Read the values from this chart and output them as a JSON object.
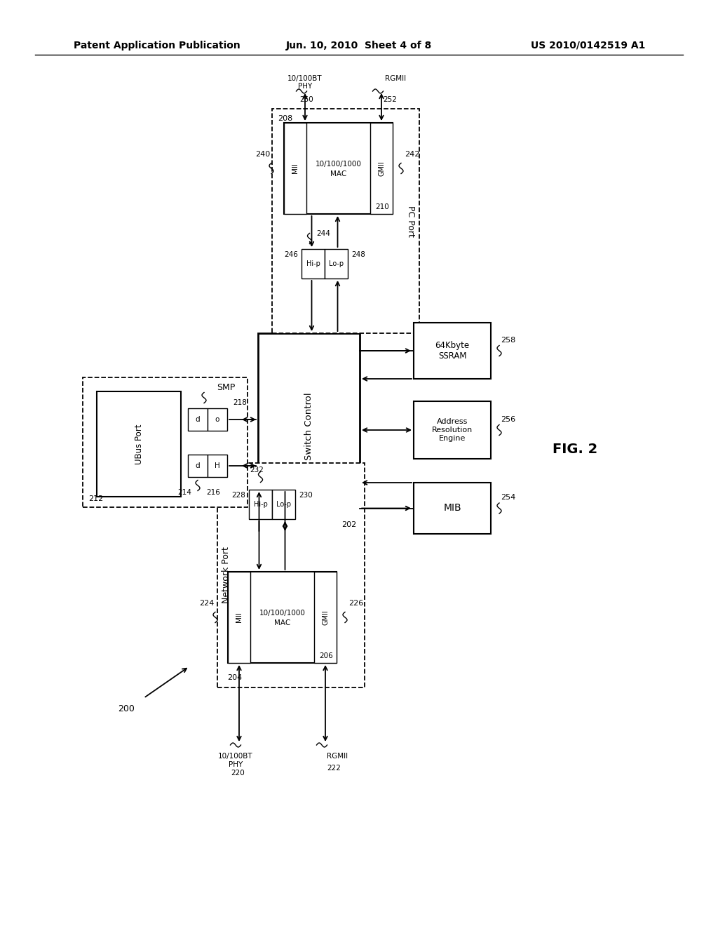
{
  "header_left": "Patent Application Publication",
  "header_mid": "Jun. 10, 2010  Sheet 4 of 8",
  "header_right": "US 2010/0142519 A1",
  "fig_label": "FIG. 2",
  "bg": "#ffffff",
  "lc": "#000000"
}
